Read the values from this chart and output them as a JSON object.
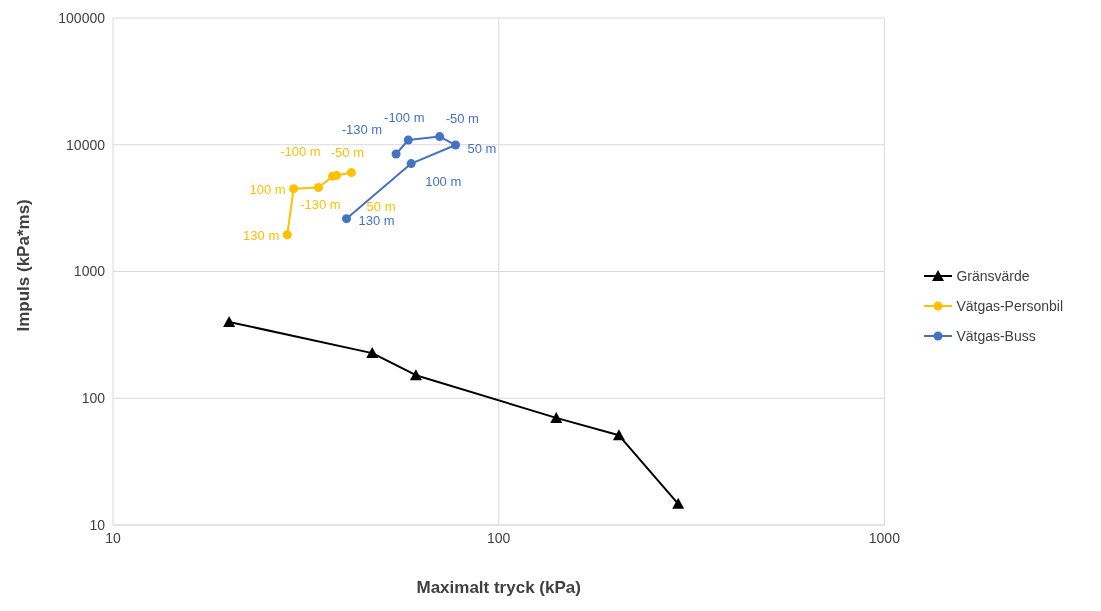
{
  "chart_data": {
    "type": "line",
    "xlabel": "Maximalt tryck (kPa)",
    "ylabel": "Impuls (kPa*ms)",
    "log": "xy",
    "grid": true,
    "legend": "right",
    "xlim": [
      10,
      1000
    ],
    "xticks": [
      10,
      100,
      1000
    ],
    "ylim": [
      10,
      100000
    ],
    "yticks": [
      10,
      100,
      1000,
      10000,
      100000
    ],
    "series": [
      {
        "name": "Gränsvärde",
        "color": "#000000",
        "marker": "triangle",
        "x": [
          20,
          47,
          61,
          141,
          205,
          292
        ],
        "values": [
          400,
          227,
          152,
          70,
          51,
          14.7
        ]
      },
      {
        "name": "Vätgas-Personbil",
        "color": "#ffc000",
        "marker": "circle",
        "x": [
          28.3,
          29.4,
          34.1,
          37.1,
          38,
          41.5
        ],
        "values": [
          1950,
          4500,
          4600,
          5650,
          5730,
          6030
        ]
      },
      {
        "name": "Vätgas-Buss",
        "color": "#4472c4",
        "marker": "circle",
        "x": [
          40.3,
          59.3,
          77.3,
          70.3,
          58.3,
          54.2
        ],
        "values": [
          2610,
          7100,
          9950,
          11600,
          10900,
          8450
        ]
      }
    ],
    "annotations": [
      {
        "text": "130 m",
        "x": 28.3,
        "y": 1950
      },
      {
        "text": "100 m",
        "x": 29.4,
        "y": 4500
      },
      {
        "text": "-130 m",
        "x": 34.1,
        "y": 4600
      },
      {
        "text": "-100 m",
        "x": 37.1,
        "y": 5650
      },
      {
        "text": "50 m",
        "x": 38,
        "y": 5730
      },
      {
        "text": "-50 m",
        "x": 41.5,
        "y": 6030
      },
      {
        "text": "130 m",
        "x": 40.3,
        "y": 2610
      },
      {
        "text": "100 m",
        "x": 59.3,
        "y": 7100
      },
      {
        "text": "50 m",
        "x": 77.3,
        "y": 9950
      },
      {
        "text": "-50 m",
        "x": 70.3,
        "y": 11600
      },
      {
        "text": "-100 m",
        "x": 58.3,
        "y": 10900
      },
      {
        "text": "-130 m",
        "x": 54.2,
        "y": 8450
      }
    ]
  }
}
